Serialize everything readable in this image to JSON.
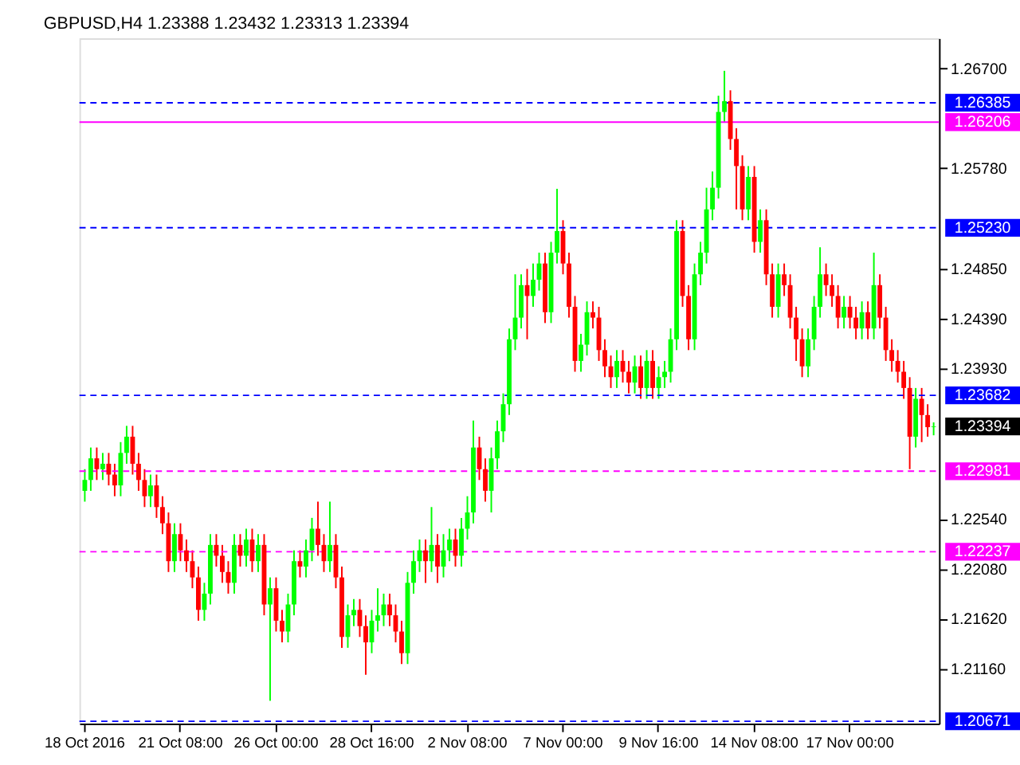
{
  "chart_data": {
    "type": "candlestick",
    "title": "GBPUSD,H4  1.23388 1.23432 1.23313 1.23394",
    "categories": [
      "18 Oct 2016",
      null,
      null,
      null,
      null,
      null,
      null,
      null,
      null,
      null,
      null,
      null,
      null,
      null,
      null,
      null,
      "21 Oct 08:00",
      null,
      null,
      null,
      null,
      null,
      null,
      null,
      null,
      null,
      null,
      null,
      null,
      null,
      null,
      null,
      "26 Oct 00:00",
      null,
      null,
      null,
      null,
      null,
      null,
      null,
      null,
      null,
      null,
      null,
      null,
      null,
      null,
      null,
      "28 Oct 16:00",
      null,
      null,
      null,
      null,
      null,
      null,
      null,
      null,
      null,
      null,
      null,
      null,
      null,
      null,
      null,
      "2 Nov 08:00",
      null,
      null,
      null,
      null,
      null,
      null,
      null,
      null,
      null,
      null,
      null,
      null,
      null,
      null,
      null,
      "7 Nov 00:00",
      null,
      null,
      null,
      null,
      null,
      null,
      null,
      null,
      null,
      null,
      null,
      null,
      null,
      null,
      null,
      "9 Nov 16:00",
      null,
      null,
      null,
      null,
      null,
      null,
      null,
      null,
      null,
      null,
      null,
      null,
      null,
      null,
      null,
      "14 Nov 08:00",
      null,
      null,
      null,
      null,
      null,
      null,
      null,
      null,
      null,
      null,
      null,
      null,
      null,
      null,
      null,
      "17 Nov 00:00",
      null,
      null,
      null,
      null,
      null,
      null,
      null,
      null,
      null,
      null,
      null,
      null,
      null,
      null
    ],
    "ohlc": [
      [
        1.228,
        1.23,
        1.227,
        1.229
      ],
      [
        1.229,
        1.232,
        1.228,
        1.231
      ],
      [
        1.231,
        1.232,
        1.229,
        1.23
      ],
      [
        1.23,
        1.2315,
        1.229,
        1.2305
      ],
      [
        1.2305,
        1.2315,
        1.2285,
        1.2295
      ],
      [
        1.2295,
        1.2305,
        1.2275,
        1.2285
      ],
      [
        1.2285,
        1.2325,
        1.2275,
        1.2315
      ],
      [
        1.2315,
        1.234,
        1.2305,
        1.233
      ],
      [
        1.233,
        1.234,
        1.2295,
        1.2305
      ],
      [
        1.2305,
        1.2315,
        1.228,
        1.229
      ],
      [
        1.229,
        1.23,
        1.2265,
        1.2275
      ],
      [
        1.2275,
        1.2295,
        1.2265,
        1.2285
      ],
      [
        1.2285,
        1.2295,
        1.2255,
        1.2265
      ],
      [
        1.2265,
        1.2275,
        1.224,
        1.225
      ],
      [
        1.225,
        1.226,
        1.2205,
        1.2215
      ],
      [
        1.2215,
        1.225,
        1.2205,
        1.224
      ],
      [
        1.224,
        1.225,
        1.2215,
        1.2225
      ],
      [
        1.2225,
        1.2235,
        1.2205,
        1.2215
      ],
      [
        1.2215,
        1.2225,
        1.219,
        1.22
      ],
      [
        1.22,
        1.221,
        1.216,
        1.217
      ],
      [
        1.217,
        1.2195,
        1.216,
        1.2185
      ],
      [
        1.2185,
        1.224,
        1.2175,
        1.223
      ],
      [
        1.223,
        1.224,
        1.221,
        1.222
      ],
      [
        1.222,
        1.223,
        1.2195,
        1.2205
      ],
      [
        1.2205,
        1.2215,
        1.2185,
        1.2195
      ],
      [
        1.2195,
        1.224,
        1.2185,
        1.223
      ],
      [
        1.223,
        1.224,
        1.221,
        1.222
      ],
      [
        1.222,
        1.2245,
        1.221,
        1.2235
      ],
      [
        1.2235,
        1.2245,
        1.2205,
        1.2215
      ],
      [
        1.2215,
        1.224,
        1.2205,
        1.223
      ],
      [
        1.223,
        1.224,
        1.2165,
        1.2175
      ],
      [
        1.2175,
        1.22,
        1.2086,
        1.219
      ],
      [
        1.219,
        1.22,
        1.215,
        1.216
      ],
      [
        1.216,
        1.217,
        1.214,
        1.215
      ],
      [
        1.215,
        1.2185,
        1.214,
        1.2175
      ],
      [
        1.2175,
        1.2225,
        1.2165,
        1.2215
      ],
      [
        1.2215,
        1.2225,
        1.22,
        1.221
      ],
      [
        1.221,
        1.2235,
        1.22,
        1.2225
      ],
      [
        1.2225,
        1.2255,
        1.2215,
        1.2245
      ],
      [
        1.2245,
        1.227,
        1.222,
        1.223
      ],
      [
        1.223,
        1.224,
        1.2205,
        1.2215
      ],
      [
        1.2215,
        1.227,
        1.2205,
        1.223
      ],
      [
        1.223,
        1.224,
        1.219,
        1.22
      ],
      [
        1.22,
        1.221,
        1.2135,
        1.2145
      ],
      [
        1.2145,
        1.2175,
        1.2135,
        1.2165
      ],
      [
        1.2165,
        1.218,
        1.2155,
        1.217
      ],
      [
        1.217,
        1.218,
        1.2145,
        1.2155
      ],
      [
        1.2155,
        1.2165,
        1.211,
        1.214
      ],
      [
        1.214,
        1.217,
        1.213,
        1.216
      ],
      [
        1.216,
        1.219,
        1.215,
        1.2165
      ],
      [
        1.2165,
        1.2185,
        1.2155,
        1.2175
      ],
      [
        1.2175,
        1.2185,
        1.2155,
        1.2165
      ],
      [
        1.2165,
        1.2175,
        1.214,
        1.215
      ],
      [
        1.215,
        1.216,
        1.212,
        1.213
      ],
      [
        1.213,
        1.2205,
        1.212,
        1.2195
      ],
      [
        1.2195,
        1.2225,
        1.2185,
        1.2215
      ],
      [
        1.2215,
        1.2235,
        1.2205,
        1.2225
      ],
      [
        1.2225,
        1.2235,
        1.2195,
        1.2215
      ],
      [
        1.2215,
        1.2265,
        1.2205,
        1.223
      ],
      [
        1.223,
        1.224,
        1.2195,
        1.221
      ],
      [
        1.221,
        1.224,
        1.22,
        1.2225
      ],
      [
        1.2225,
        1.2245,
        1.2215,
        1.2235
      ],
      [
        1.2235,
        1.2245,
        1.221,
        1.222
      ],
      [
        1.222,
        1.2255,
        1.221,
        1.2245
      ],
      [
        1.2245,
        1.2275,
        1.2235,
        1.226
      ],
      [
        1.226,
        1.2345,
        1.225,
        1.232
      ],
      [
        1.232,
        1.233,
        1.229,
        1.23
      ],
      [
        1.23,
        1.231,
        1.227,
        1.228
      ],
      [
        1.228,
        1.232,
        1.226,
        1.231
      ],
      [
        1.231,
        1.2345,
        1.23,
        1.2335
      ],
      [
        1.2335,
        1.237,
        1.2325,
        1.236
      ],
      [
        1.236,
        1.243,
        1.235,
        1.242
      ],
      [
        1.242,
        1.248,
        1.241,
        1.244
      ],
      [
        1.244,
        1.248,
        1.243,
        1.247
      ],
      [
        1.247,
        1.2485,
        1.242,
        1.246
      ],
      [
        1.246,
        1.249,
        1.245,
        1.2475
      ],
      [
        1.2475,
        1.25,
        1.2465,
        1.249
      ],
      [
        1.249,
        1.25,
        1.2435,
        1.2445
      ],
      [
        1.2445,
        1.251,
        1.2435,
        1.25
      ],
      [
        1.25,
        1.2559,
        1.249,
        1.252
      ],
      [
        1.252,
        1.253,
        1.248,
        1.249
      ],
      [
        1.249,
        1.25,
        1.244,
        1.245
      ],
      [
        1.245,
        1.246,
        1.239,
        1.24
      ],
      [
        1.24,
        1.2425,
        1.239,
        1.2415
      ],
      [
        1.2415,
        1.2455,
        1.2405,
        1.2445
      ],
      [
        1.2445,
        1.2455,
        1.243,
        1.244
      ],
      [
        1.244,
        1.245,
        1.24,
        1.241
      ],
      [
        1.241,
        1.242,
        1.2385,
        1.2395
      ],
      [
        1.2395,
        1.2405,
        1.2375,
        1.2385
      ],
      [
        1.2385,
        1.241,
        1.2375,
        1.24
      ],
      [
        1.24,
        1.241,
        1.238,
        1.239
      ],
      [
        1.239,
        1.24,
        1.237,
        1.238
      ],
      [
        1.238,
        1.2405,
        1.237,
        1.2395
      ],
      [
        1.2395,
        1.2405,
        1.2365,
        1.2375
      ],
      [
        1.2375,
        1.241,
        1.2365,
        1.24
      ],
      [
        1.24,
        1.241,
        1.2365,
        1.2375
      ],
      [
        1.2375,
        1.2395,
        1.2365,
        1.2385
      ],
      [
        1.2385,
        1.24,
        1.2375,
        1.239
      ],
      [
        1.239,
        1.243,
        1.238,
        1.242
      ],
      [
        1.242,
        1.253,
        1.241,
        1.252
      ],
      [
        1.252,
        1.253,
        1.245,
        1.246
      ],
      [
        1.246,
        1.247,
        1.241,
        1.242
      ],
      [
        1.242,
        1.249,
        1.241,
        1.248
      ],
      [
        1.248,
        1.251,
        1.247,
        1.25
      ],
      [
        1.25,
        1.256,
        1.249,
        1.254
      ],
      [
        1.254,
        1.2575,
        1.253,
        1.256
      ],
      [
        1.256,
        1.2645,
        1.255,
        1.263
      ],
      [
        1.263,
        1.2668,
        1.262,
        1.264
      ],
      [
        1.264,
        1.265,
        1.2595,
        1.2605
      ],
      [
        1.2605,
        1.2615,
        1.254,
        1.258
      ],
      [
        1.258,
        1.259,
        1.253,
        1.254
      ],
      [
        1.254,
        1.258,
        1.253,
        1.257
      ],
      [
        1.257,
        1.258,
        1.25,
        1.251
      ],
      [
        1.251,
        1.254,
        1.25,
        1.253
      ],
      [
        1.253,
        1.254,
        1.247,
        1.248
      ],
      [
        1.248,
        1.249,
        1.244,
        1.245
      ],
      [
        1.245,
        1.249,
        1.244,
        1.248
      ],
      [
        1.248,
        1.249,
        1.246,
        1.247
      ],
      [
        1.247,
        1.248,
        1.243,
        1.244
      ],
      [
        1.244,
        1.245,
        1.24,
        1.242
      ],
      [
        1.242,
        1.243,
        1.2385,
        1.2395
      ],
      [
        1.2395,
        1.243,
        1.2385,
        1.242
      ],
      [
        1.242,
        1.246,
        1.241,
        1.245
      ],
      [
        1.245,
        1.2505,
        1.244,
        1.248
      ],
      [
        1.248,
        1.249,
        1.246,
        1.247
      ],
      [
        1.247,
        1.248,
        1.245,
        1.246
      ],
      [
        1.246,
        1.247,
        1.243,
        1.244
      ],
      [
        1.244,
        1.246,
        1.243,
        1.245
      ],
      [
        1.245,
        1.246,
        1.243,
        1.244
      ],
      [
        1.244,
        1.245,
        1.242,
        1.243
      ],
      [
        1.243,
        1.2455,
        1.242,
        1.2445
      ],
      [
        1.2445,
        1.2455,
        1.242,
        1.243
      ],
      [
        1.243,
        1.25,
        1.242,
        1.247
      ],
      [
        1.247,
        1.248,
        1.243,
        1.244
      ],
      [
        1.244,
        1.245,
        1.24,
        1.241
      ],
      [
        1.241,
        1.242,
        1.239,
        1.24
      ],
      [
        1.24,
        1.241,
        1.238,
        1.239
      ],
      [
        1.239,
        1.24,
        1.2365,
        1.2375
      ],
      [
        1.2375,
        1.2385,
        1.23,
        1.233
      ],
      [
        1.233,
        1.2375,
        1.232,
        1.2365
      ],
      [
        1.2365,
        1.2375,
        1.2325,
        1.235
      ],
      [
        1.235,
        1.236,
        1.233,
        1.23388
      ],
      [
        1.23388,
        1.23432,
        1.23313,
        1.23394
      ]
    ],
    "colors": [
      "#00ff00",
      "#00ff00",
      "#ff0000",
      "#00ff00",
      "#ff0000",
      "#ff0000",
      "#00ff00",
      "#00ff00",
      "#ff0000",
      "#ff0000",
      "#ff0000",
      "#00ff00",
      "#ff0000",
      "#ff0000",
      "#ff0000",
      "#00ff00",
      "#ff0000",
      "#ff0000",
      "#ff0000",
      "#ff0000",
      "#00ff00",
      "#00ff00",
      "#ff0000",
      "#ff0000",
      "#ff0000",
      "#00ff00",
      "#ff0000",
      "#00ff00",
      "#ff0000",
      "#00ff00",
      "#ff0000",
      "#00ff00",
      "#ff0000",
      "#ff0000",
      "#00ff00",
      "#00ff00",
      "#ff0000",
      "#00ff00",
      "#00ff00",
      "#ff0000",
      "#ff0000",
      "#00ff00",
      "#ff0000",
      "#ff0000",
      "#00ff00",
      "#00ff00",
      "#ff0000",
      "#ff0000",
      "#00ff00",
      "#00ff00",
      "#00ff00",
      "#ff0000",
      "#ff0000",
      "#ff0000",
      "#00ff00",
      "#00ff00",
      "#00ff00",
      "#ff0000",
      "#00ff00",
      "#ff0000",
      "#00ff00",
      "#00ff00",
      "#ff0000",
      "#00ff00",
      "#00ff00",
      "#00ff00",
      "#ff0000",
      "#ff0000",
      "#00ff00",
      "#00ff00",
      "#00ff00",
      "#00ff00",
      "#00ff00",
      "#00ff00",
      "#ff0000",
      "#00ff00",
      "#00ff00",
      "#ff0000",
      "#00ff00",
      "#00ff00",
      "#ff0000",
      "#ff0000",
      "#ff0000",
      "#00ff00",
      "#00ff00",
      "#ff0000",
      "#ff0000",
      "#ff0000",
      "#ff0000",
      "#00ff00",
      "#ff0000",
      "#ff0000",
      "#00ff00",
      "#ff0000",
      "#00ff00",
      "#ff0000",
      "#00ff00",
      "#00ff00",
      "#00ff00",
      "#00ff00",
      "#ff0000",
      "#ff0000",
      "#00ff00",
      "#00ff00",
      "#00ff00",
      "#00ff00",
      "#00ff00",
      "#00ff00",
      "#ff0000",
      "#ff0000",
      "#ff0000",
      "#00ff00",
      "#ff0000",
      "#00ff00",
      "#ff0000",
      "#ff0000",
      "#00ff00",
      "#ff0000",
      "#ff0000",
      "#ff0000",
      "#ff0000",
      "#00ff00",
      "#00ff00",
      "#00ff00",
      "#ff0000",
      "#ff0000",
      "#ff0000",
      "#00ff00",
      "#ff0000",
      "#ff0000",
      "#00ff00",
      "#ff0000",
      "#00ff00",
      "#ff0000",
      "#ff0000",
      "#ff0000",
      "#ff0000",
      "#ff0000",
      "#ff0000",
      "#00ff00",
      "#ff0000",
      "#ff0000",
      "#00ff00"
    ],
    "ylim": [
      1.2065,
      1.2698
    ],
    "yticks": [
      {
        "value": 1.267,
        "label": "1.26700"
      },
      {
        "value": 1.2578,
        "label": "1.25780"
      },
      {
        "value": 1.2485,
        "label": "1.24850"
      },
      {
        "value": 1.2439,
        "label": "1.24390"
      },
      {
        "value": 1.2393,
        "label": "1.23930"
      },
      {
        "value": 1.2254,
        "label": "1.22540"
      },
      {
        "value": 1.2208,
        "label": "1.22080"
      },
      {
        "value": 1.2162,
        "label": "1.21620"
      },
      {
        "value": 1.2116,
        "label": "1.21160"
      }
    ],
    "ref_lines": [
      {
        "axis": "y",
        "value": 1.26385,
        "label": "1.26385",
        "color": "#0000ff",
        "line_style": "dashed"
      },
      {
        "axis": "y",
        "value": 1.26206,
        "label": "1.26206",
        "color": "#ff00ff",
        "line_style": "solid"
      },
      {
        "axis": "y",
        "value": 1.2523,
        "label": "1.25230",
        "color": "#0000ff",
        "line_style": "dashed"
      },
      {
        "axis": "y",
        "value": 1.23682,
        "label": "1.23682",
        "color": "#0000ff",
        "line_style": "dashed"
      },
      {
        "axis": "y",
        "value": 1.22981,
        "label": "1.22981",
        "color": "#ff00ff",
        "line_style": "dashed"
      },
      {
        "axis": "y",
        "value": 1.22237,
        "label": "1.22237",
        "color": "#ff00ff",
        "line_style": "dashed"
      },
      {
        "axis": "y",
        "value": 1.20671,
        "label": "1.20671",
        "color": "#0000ff",
        "line_style": "dashed"
      }
    ],
    "annotations": [
      "1.23394"
    ],
    "grid": false
  }
}
